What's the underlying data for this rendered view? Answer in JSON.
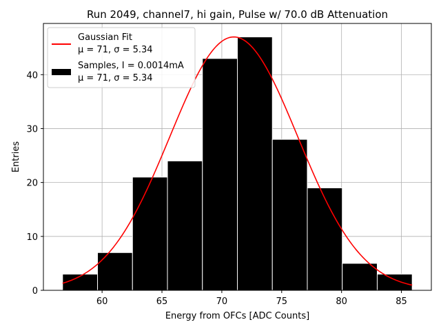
{
  "chart_data": {
    "type": "bar",
    "title": "Run 2049, channel7, hi gain, Pulse w/ 70.0 dB Attenuation",
    "xlabel": "Energy from OFCs [ADC Counts]",
    "ylabel": "Entries",
    "xlim": [
      55.1,
      87.5
    ],
    "ylim": [
      0,
      49.5
    ],
    "xticks": [
      60,
      65,
      70,
      75,
      80,
      85
    ],
    "yticks": [
      0,
      10,
      20,
      30,
      40
    ],
    "grid": true,
    "legend_position": "upper-left",
    "histogram": {
      "name": "Samples, I = 0.0014mA",
      "stats": "μ = 71, σ = 5.34",
      "bin_edges": [
        56.7,
        59.62,
        62.54,
        65.46,
        68.38,
        71.3,
        74.22,
        77.14,
        80.06,
        82.98,
        85.9
      ],
      "counts": [
        3,
        7,
        21,
        24,
        43,
        47,
        28,
        19,
        5,
        3
      ],
      "color": "#000000",
      "edge_color": "#ffffff"
    },
    "fit": {
      "name": "Gaussian Fit",
      "stats": "μ = 71, σ = 5.34",
      "mu": 71,
      "sigma": 5.34,
      "amplitude": 47,
      "x_range": [
        56.7,
        85.9
      ],
      "color": "#ff0000"
    }
  }
}
